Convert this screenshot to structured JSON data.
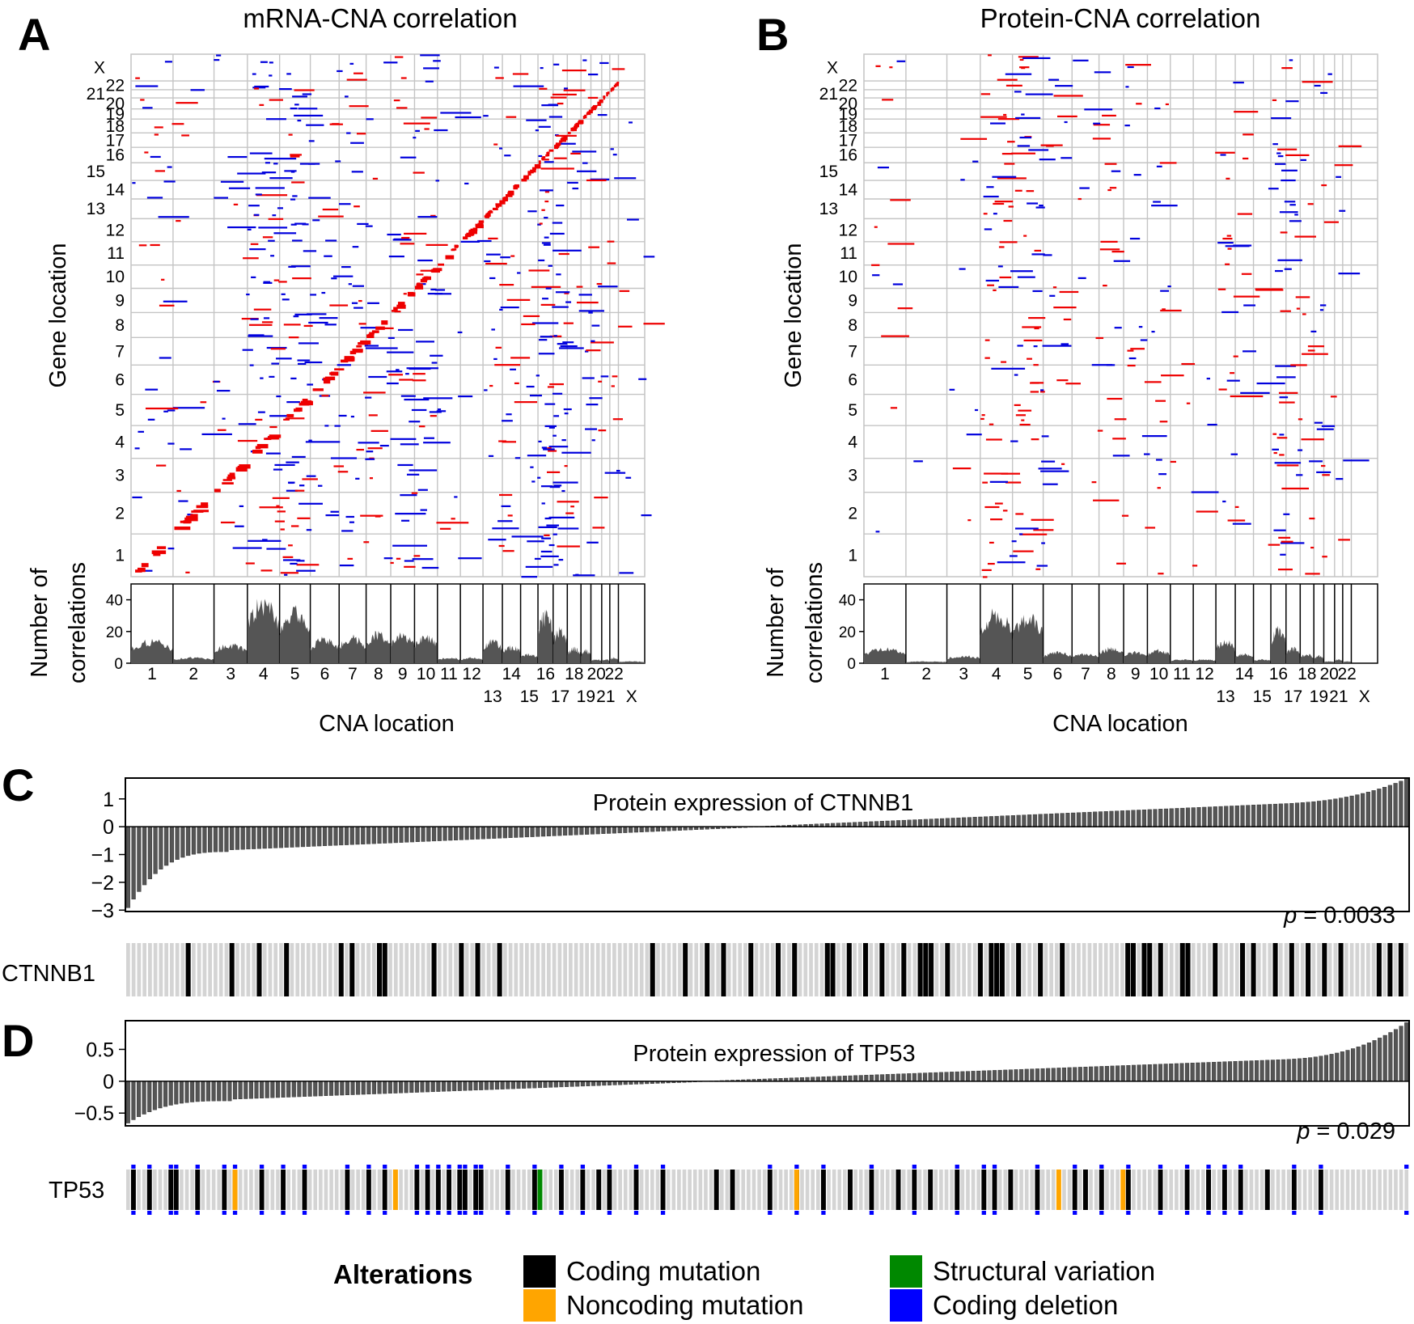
{
  "colors": {
    "positive": "#ee0000",
    "negative": "#0000dd",
    "bar": "#555555",
    "grid": "#c4c4c4",
    "row_bg": "#d4d4d4",
    "coding_mutation": "#000000",
    "noncoding_mutation": "#ffa500",
    "structural_variation": "#008800",
    "coding_deletion": "#0000ff"
  },
  "panels": {
    "A": {
      "letter": "A",
      "title": "mRNA-CNA correlation"
    },
    "B": {
      "letter": "B",
      "title": "Protein-CNA correlation"
    },
    "C": {
      "letter": "C",
      "title": "Protein expression of CTNNB1",
      "pvalue_label": "p",
      "pvalue_rest": " = 0.0033",
      "gene": "CTNNB1"
    },
    "D": {
      "letter": "D",
      "title": "Protein expression of TP53",
      "pvalue_label": "p",
      "pvalue_rest": " = 0.029",
      "gene": "TP53"
    }
  },
  "axes": {
    "gene_location": "Gene location",
    "cna_location": "CNA location",
    "number_of": "Number of",
    "correlations": "correlations"
  },
  "legend": {
    "title": "Alterations",
    "items": [
      {
        "label": "Coding mutation",
        "color": "#000000"
      },
      {
        "label": "Noncoding mutation",
        "color": "#ffa500"
      },
      {
        "label": "Structural variation",
        "color": "#008800"
      },
      {
        "label": "Coding deletion",
        "color": "#0000ff"
      }
    ]
  },
  "chart_data": [
    {
      "panel": "A",
      "type": "heatmap",
      "title": "mRNA-CNA correlation",
      "xlabel": "CNA location",
      "ylabel": "Gene location",
      "x_tick_labels": [
        "1",
        "2",
        "3",
        "4",
        "5",
        "6",
        "7",
        "8",
        "9",
        "10",
        "11",
        "12",
        "13",
        "14",
        "15",
        "16",
        "17",
        "18",
        "19",
        "20",
        "21",
        "22",
        "X"
      ],
      "y_tick_labels": [
        "1",
        "2",
        "3",
        "4",
        "5",
        "6",
        "7",
        "8",
        "9",
        "10",
        "11",
        "12",
        "13",
        "14",
        "15",
        "16",
        "17",
        "18",
        "19",
        "20",
        "21",
        "22",
        "X"
      ],
      "legend": "none",
      "bottom_histogram": {
        "type": "area",
        "ylabel": "Number of correlations",
        "yticks": [
          0,
          20,
          40
        ],
        "ylim": [
          0,
          50
        ],
        "values_by_chromosome": [
          12,
          3,
          10,
          33,
          28,
          13,
          14,
          16,
          15,
          14,
          3,
          3,
          12,
          9,
          5,
          26,
          18,
          8,
          7,
          2,
          2,
          3,
          1
        ]
      }
    },
    {
      "panel": "B",
      "type": "heatmap",
      "title": "Protein-CNA correlation",
      "xlabel": "CNA location",
      "ylabel": "Gene location",
      "x_tick_labels": [
        "1",
        "2",
        "3",
        "4",
        "5",
        "6",
        "7",
        "8",
        "9",
        "10",
        "11",
        "12",
        "13",
        "14",
        "15",
        "16",
        "17",
        "18",
        "19",
        "20",
        "21",
        "22",
        "X"
      ],
      "y_tick_labels": [
        "1",
        "2",
        "3",
        "4",
        "5",
        "6",
        "7",
        "8",
        "9",
        "10",
        "11",
        "12",
        "13",
        "14",
        "15",
        "16",
        "17",
        "18",
        "19",
        "20",
        "21",
        "22",
        "X"
      ],
      "legend": "none",
      "bottom_histogram": {
        "type": "area",
        "ylabel": "Number of correlations",
        "yticks": [
          0,
          20,
          40
        ],
        "ylim": [
          0,
          50
        ],
        "values_by_chromosome": [
          8,
          1,
          4,
          27,
          25,
          6,
          5,
          8,
          6,
          7,
          2,
          2,
          12,
          5,
          2,
          18,
          8,
          5,
          4,
          1,
          2,
          1,
          0
        ]
      }
    },
    {
      "panel": "C",
      "type": "bar",
      "title": "Protein expression of CTNNB1",
      "yticks": [
        -3,
        -2,
        -1,
        0,
        1
      ],
      "ylim": [
        -3.05,
        1.75
      ],
      "n_samples": 235,
      "value_min": -2.9,
      "value_max": 1.72,
      "pvalue": "0.0033",
      "mutated_sample_indices": [
        11,
        19,
        24,
        29,
        39,
        41,
        46,
        47,
        56,
        61,
        64,
        68,
        96,
        102,
        106,
        109,
        114,
        119,
        122,
        128,
        129,
        132,
        135,
        138,
        142,
        145,
        146,
        147,
        150,
        156,
        158,
        159,
        160,
        163,
        167,
        171,
        183,
        184,
        186,
        187,
        189,
        193,
        194,
        199,
        204,
        206,
        210,
        213,
        216,
        219,
        222,
        229,
        231,
        233
      ]
    },
    {
      "panel": "D",
      "type": "bar",
      "title": "Protein expression of TP53",
      "yticks": [
        -0.5,
        0,
        0.5
      ],
      "ylim": [
        -0.7,
        0.95
      ],
      "n_samples": 240,
      "value_min": -0.65,
      "value_max": 0.92,
      "pvalue": "0.029",
      "alterations": {
        "coding_mutation": [
          1,
          4,
          8,
          9,
          13,
          18,
          20,
          25,
          29,
          33,
          41,
          45,
          48,
          54,
          56,
          58,
          60,
          62,
          63,
          65,
          66,
          71,
          76,
          81,
          85,
          88,
          90,
          95,
          100,
          110,
          113,
          120,
          125,
          130,
          135,
          139,
          144,
          147,
          150,
          155,
          160,
          162,
          165,
          170,
          177,
          179,
          182,
          187,
          193,
          198,
          202,
          205,
          208,
          213,
          218,
          223
        ],
        "noncoding_mutation": [
          20,
          50,
          125,
          174,
          186
        ],
        "structural_variation": [
          77
        ],
        "coding_deletion": [
          1,
          4,
          8,
          9,
          13,
          18,
          20,
          25,
          29,
          33,
          41,
          45,
          48,
          54,
          56,
          58,
          60,
          62,
          63,
          65,
          66,
          71,
          76,
          81,
          85,
          90,
          95,
          100,
          120,
          125,
          130,
          139,
          147,
          155,
          160,
          162,
          170,
          177,
          182,
          187,
          193,
          198,
          202,
          205,
          208,
          218,
          223,
          239
        ]
      }
    }
  ]
}
